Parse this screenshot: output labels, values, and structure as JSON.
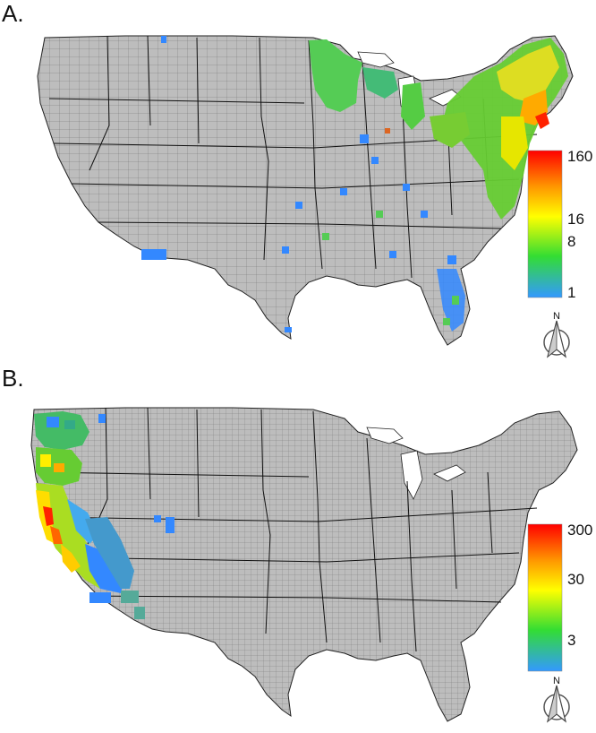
{
  "panels": [
    {
      "label": "A.",
      "legend": {
        "ticks": [
          "160",
          "16",
          "8",
          "1"
        ],
        "tick_values": [
          160,
          16,
          8,
          1
        ],
        "colors": [
          "#ff0000",
          "#ff9900",
          "#ffff00",
          "#33dd33",
          "#3399ff"
        ]
      },
      "north_label": "N",
      "highlight_regions": [
        "northeast",
        "great-lakes",
        "upper-midwest",
        "southeast-scattered",
        "florida"
      ]
    },
    {
      "label": "B.",
      "legend": {
        "ticks": [
          "300",
          "30",
          "3"
        ],
        "tick_values": [
          300,
          30,
          3
        ],
        "colors": [
          "#ff0000",
          "#ff9900",
          "#ffff00",
          "#33dd33",
          "#3399ff"
        ]
      },
      "north_label": "N",
      "highlight_regions": [
        "pacific-coast",
        "california",
        "oregon",
        "washington",
        "nevada",
        "arizona"
      ]
    }
  ],
  "colors": {
    "land": "#bdbdbd",
    "county_border": "#6e6e6e",
    "state_border": "#111111",
    "background": "#ffffff"
  }
}
